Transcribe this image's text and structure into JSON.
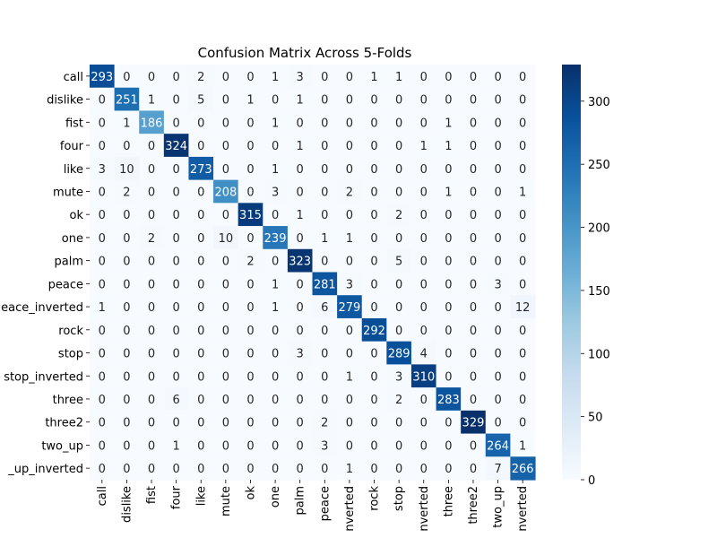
{
  "chart_data": {
    "type": "heatmap",
    "title": "Confusion Matrix Across 5-Folds",
    "xlabel": "",
    "ylabel": "",
    "x_tick_labels": [
      "call",
      "dislike",
      "fist",
      "four",
      "like",
      "mute",
      "ok",
      "one",
      "palm",
      "peace",
      "nverted",
      "rock",
      "stop",
      "nverted",
      "three",
      "three2",
      "two_up",
      "nverted"
    ],
    "y_tick_labels": [
      "call",
      "dislike",
      "fist",
      "four",
      "like",
      "mute",
      "ok",
      "one",
      "palm",
      "peace",
      "eace_inverted",
      "rock",
      "stop",
      "stop_inverted",
      "three",
      "three2",
      "two_up",
      "_up_inverted"
    ],
    "values": [
      [
        293,
        0,
        0,
        0,
        2,
        0,
        0,
        1,
        3,
        0,
        0,
        1,
        1,
        0,
        0,
        0,
        0,
        0
      ],
      [
        0,
        251,
        1,
        0,
        5,
        0,
        1,
        0,
        1,
        0,
        0,
        0,
        0,
        0,
        0,
        0,
        0,
        0
      ],
      [
        0,
        1,
        186,
        0,
        0,
        0,
        0,
        1,
        0,
        0,
        0,
        0,
        0,
        0,
        1,
        0,
        0,
        0
      ],
      [
        0,
        0,
        0,
        324,
        0,
        0,
        0,
        0,
        1,
        0,
        0,
        0,
        0,
        1,
        1,
        0,
        0,
        0
      ],
      [
        3,
        10,
        0,
        0,
        273,
        0,
        0,
        1,
        0,
        0,
        0,
        0,
        0,
        0,
        0,
        0,
        0,
        0
      ],
      [
        0,
        2,
        0,
        0,
        0,
        208,
        0,
        3,
        0,
        0,
        2,
        0,
        0,
        0,
        1,
        0,
        0,
        1
      ],
      [
        0,
        0,
        0,
        0,
        0,
        0,
        315,
        0,
        1,
        0,
        0,
        0,
        2,
        0,
        0,
        0,
        0,
        0
      ],
      [
        0,
        0,
        2,
        0,
        0,
        10,
        0,
        239,
        0,
        1,
        1,
        0,
        0,
        0,
        0,
        0,
        0,
        0
      ],
      [
        0,
        0,
        0,
        0,
        0,
        0,
        2,
        0,
        323,
        0,
        0,
        0,
        5,
        0,
        0,
        0,
        0,
        0
      ],
      [
        0,
        0,
        0,
        0,
        0,
        0,
        0,
        1,
        0,
        281,
        3,
        0,
        0,
        0,
        0,
        0,
        3,
        0
      ],
      [
        1,
        0,
        0,
        0,
        0,
        0,
        0,
        1,
        0,
        6,
        279,
        0,
        0,
        0,
        0,
        0,
        0,
        12
      ],
      [
        0,
        0,
        0,
        0,
        0,
        0,
        0,
        0,
        0,
        0,
        0,
        292,
        0,
        0,
        0,
        0,
        0,
        0
      ],
      [
        0,
        0,
        0,
        0,
        0,
        0,
        0,
        0,
        3,
        0,
        0,
        0,
        289,
        4,
        0,
        0,
        0,
        0
      ],
      [
        0,
        0,
        0,
        0,
        0,
        0,
        0,
        0,
        0,
        0,
        1,
        0,
        3,
        310,
        0,
        0,
        0,
        0
      ],
      [
        0,
        0,
        0,
        6,
        0,
        0,
        0,
        0,
        0,
        0,
        0,
        0,
        2,
        0,
        283,
        0,
        0,
        0
      ],
      [
        0,
        0,
        0,
        0,
        0,
        0,
        0,
        0,
        0,
        2,
        0,
        0,
        0,
        0,
        0,
        329,
        0,
        0
      ],
      [
        0,
        0,
        0,
        1,
        0,
        0,
        0,
        0,
        0,
        3,
        0,
        0,
        0,
        0,
        0,
        0,
        264,
        1
      ],
      [
        0,
        0,
        0,
        0,
        0,
        0,
        0,
        0,
        0,
        0,
        1,
        0,
        0,
        0,
        0,
        0,
        7,
        266
      ]
    ],
    "colormap": "Blues",
    "colorbar": {
      "range": [
        0,
        329
      ],
      "ticks": [
        0,
        50,
        100,
        150,
        200,
        250,
        300
      ]
    },
    "grid": false,
    "legend": "none"
  }
}
